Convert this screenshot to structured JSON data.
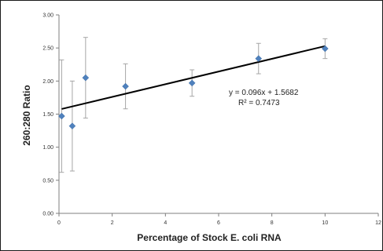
{
  "chart_data": {
    "type": "scatter",
    "title": "",
    "xlabel": "Percentage of Stock E. coli RNA",
    "ylabel": "260:280 Ratio",
    "xlim": [
      0,
      12
    ],
    "ylim": [
      0,
      3
    ],
    "x_ticks": [
      0,
      2,
      4,
      6,
      8,
      10,
      12
    ],
    "x_tick_labels": [
      "0",
      "2",
      "4",
      "6",
      "8",
      "10",
      "12"
    ],
    "y_ticks": [
      0,
      0.5,
      1,
      1.5,
      2,
      2.5,
      3
    ],
    "y_tick_labels": [
      "0.00",
      "0.50",
      "1.00",
      "1.50",
      "2.00",
      "2.50",
      "3.00"
    ],
    "grid": false,
    "legend": "none",
    "marker_color": "#4f81bd",
    "error_bar_color": "#a6a6a6",
    "trendline_color": "#000000",
    "points": [
      {
        "x": 0.1,
        "y": 1.47,
        "err": 0.85
      },
      {
        "x": 0.5,
        "y": 1.32,
        "err": 0.68
      },
      {
        "x": 1.0,
        "y": 2.05,
        "err": 0.61
      },
      {
        "x": 2.5,
        "y": 1.92,
        "err": 0.34
      },
      {
        "x": 5.0,
        "y": 1.97,
        "err": 0.2
      },
      {
        "x": 7.5,
        "y": 2.34,
        "err": 0.23
      },
      {
        "x": 10.0,
        "y": 2.49,
        "err": 0.15
      }
    ],
    "trendline": {
      "slope": 0.096,
      "intercept": 1.5682,
      "x_range": [
        0.1,
        10
      ]
    },
    "annotations": {
      "equation": "y = 0.096x + 1.5682",
      "r_squared": "R² = 0.7473"
    }
  }
}
